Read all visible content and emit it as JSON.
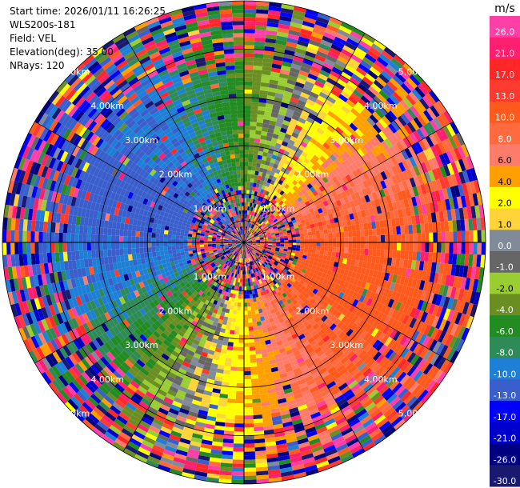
{
  "meta": {
    "start_time": "Start time: 2026/01/11 16:26:25",
    "instrument": "WLS200s-181",
    "field": "Field: VEL",
    "elevation": "Elevation(deg): 35.00",
    "nrays": "NRays: 120"
  },
  "chart_data": {
    "type": "heatmap",
    "projection": "polar-ppi",
    "field": "VEL",
    "units": "m/s",
    "nrays": 120,
    "range_rings": [
      "1.00km",
      "2.00km",
      "3.00km",
      "4.00km",
      "5.00km"
    ],
    "range_rings_km": [
      1,
      2,
      3,
      4,
      5
    ],
    "max_range_km": 5.0,
    "colorbar": {
      "unit": "m/s",
      "ticks": [
        "26.0",
        "21.0",
        "17.0",
        "13.0",
        "10.0",
        "8.0",
        "6.0",
        "4.0",
        "2.0",
        "1.0",
        "0.0",
        "-1.0",
        "-2.0",
        "-4.0",
        "-6.0",
        "-8.0",
        "-10.0",
        "-13.0",
        "-17.0",
        "-21.0",
        "-26.0",
        "-30.0"
      ],
      "bins": [
        {
          "min": 26,
          "max": 30,
          "color": "#ff3fa8"
        },
        {
          "min": 21,
          "max": 26,
          "color": "#ff1f6e"
        },
        {
          "min": 17,
          "max": 21,
          "color": "#ff2727"
        },
        {
          "min": 13,
          "max": 17,
          "color": "#ff3a2e"
        },
        {
          "min": 10,
          "max": 13,
          "color": "#ff5a1e"
        },
        {
          "min": 8,
          "max": 10,
          "color": "#ff6a3e"
        },
        {
          "min": 6,
          "max": 8,
          "color": "#ff7c6a"
        },
        {
          "min": 4,
          "max": 6,
          "color": "#ffa000"
        },
        {
          "min": 2,
          "max": 4,
          "color": "#ffff00"
        },
        {
          "min": 1,
          "max": 2,
          "color": "#ffd33a"
        },
        {
          "min": 0,
          "max": 1,
          "color": "#808a99"
        },
        {
          "min": -1,
          "max": 0,
          "color": "#666666"
        },
        {
          "min": -2,
          "max": -1,
          "color": "#9acd32"
        },
        {
          "min": -4,
          "max": -2,
          "color": "#6b8e23"
        },
        {
          "min": -6,
          "max": -4,
          "color": "#228b22"
        },
        {
          "min": -8,
          "max": -6,
          "color": "#2e8b57"
        },
        {
          "min": -10,
          "max": -8,
          "color": "#1e7fd6"
        },
        {
          "min": -13,
          "max": -10,
          "color": "#3a5fcd"
        },
        {
          "min": -17,
          "max": -13,
          "color": "#0000ff"
        },
        {
          "min": -21,
          "max": -17,
          "color": "#0000cd"
        },
        {
          "min": -26,
          "max": -21,
          "color": "#000080"
        },
        {
          "min": -30,
          "max": -26,
          "color": "#191970"
        }
      ]
    },
    "wind_pattern": {
      "description_values": "receding flow to the east/south-east (positive, orange-red), approaching flow to the west (negative, blue), noisy returns beyond ~3.5 km and near the radar",
      "dominant_inbound_ms": -12,
      "dominant_outbound_ms": 10
    }
  }
}
